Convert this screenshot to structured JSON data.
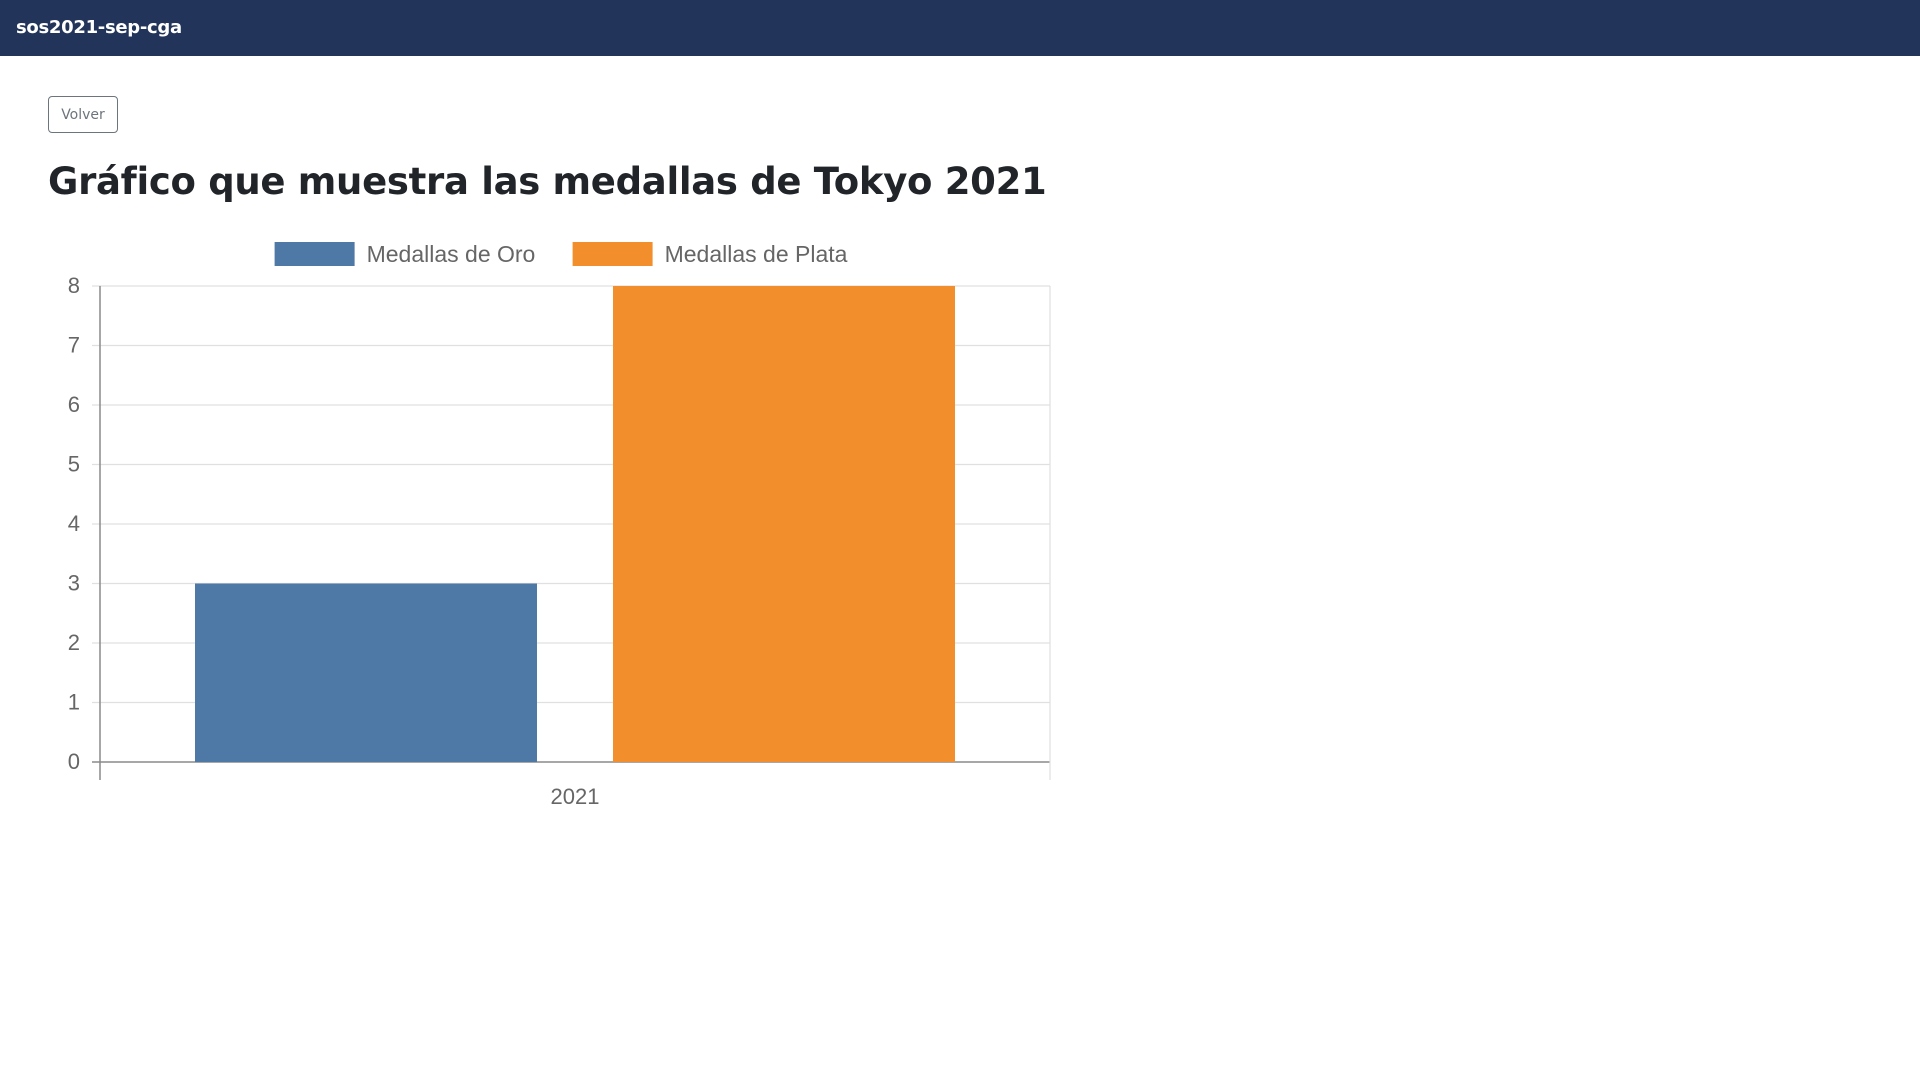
{
  "navbar": {
    "brand": "sos2021-sep-cga"
  },
  "back_button": {
    "label": "Volver"
  },
  "page": {
    "title": "Gráfico que muestra las medallas de Tokyo 2021"
  },
  "chart_data": {
    "type": "bar",
    "categories": [
      "2021"
    ],
    "series": [
      {
        "name": "Medallas de Oro",
        "values": [
          3
        ],
        "color": "#4e79a7"
      },
      {
        "name": "Medallas de Plata",
        "values": [
          8
        ],
        "color": "#f28e2c"
      }
    ],
    "ylim": [
      0,
      8
    ],
    "yticks": [
      0,
      1,
      2,
      3,
      4,
      5,
      6,
      7,
      8
    ],
    "grid": true,
    "legend": "top-center",
    "title": "",
    "xlabel": "",
    "ylabel": ""
  }
}
